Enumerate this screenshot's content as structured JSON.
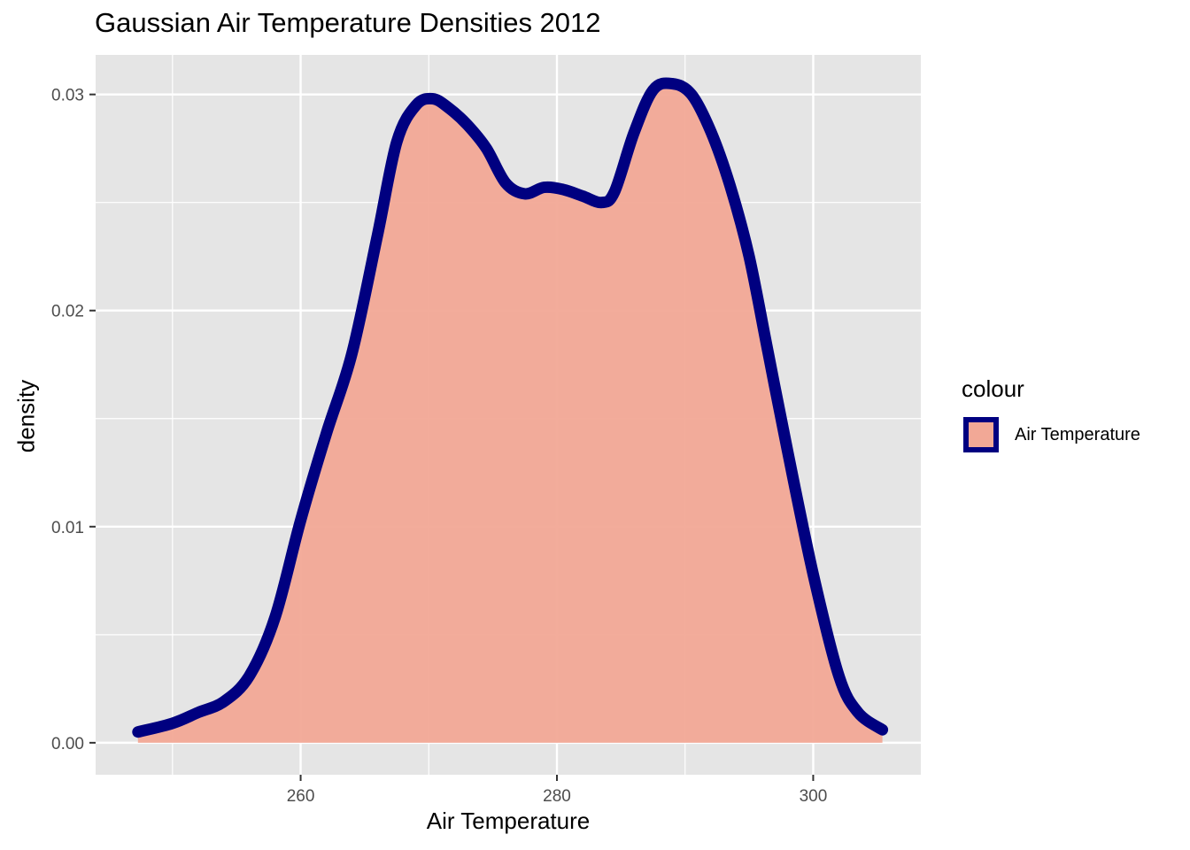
{
  "chart_data": {
    "type": "area",
    "title": "Gaussian Air Temperature Densities 2012",
    "xlabel": "Air Temperature",
    "ylabel": "density",
    "xlim": [
      244,
      308.4
    ],
    "ylim": [
      -0.00148,
      0.03183
    ],
    "x_ticks": [
      260,
      280,
      300
    ],
    "y_ticks": [
      0.0,
      0.01,
      0.02,
      0.03
    ],
    "x_tick_labels": [
      "260",
      "280",
      "300"
    ],
    "y_tick_labels": [
      "0.00",
      "0.01",
      "0.02",
      "0.03"
    ],
    "grid": true,
    "legend": {
      "title": "colour",
      "placement": "right",
      "entries": [
        "Air Temperature"
      ]
    },
    "colors": {
      "panel": "#e5e5e5",
      "grid": "#ffffff",
      "line": "#000080",
      "fill": "#f2a896"
    },
    "series": [
      {
        "name": "Air Temperature",
        "x": [
          247.3,
          250,
          252,
          254,
          256,
          258,
          260,
          262,
          264,
          266,
          267.5,
          269,
          270.3,
          271.5,
          273,
          274.5,
          276,
          277.5,
          279,
          280.5,
          282,
          283.5,
          284.5,
          286,
          287.5,
          289,
          290.5,
          292,
          293.5,
          295,
          296.5,
          298,
          300,
          302,
          303.5,
          305.4
        ],
        "y": [
          0.0005,
          0.0009,
          0.0014,
          0.0019,
          0.0031,
          0.0058,
          0.0103,
          0.0143,
          0.018,
          0.0235,
          0.0278,
          0.0295,
          0.0298,
          0.0294,
          0.0286,
          0.0275,
          0.0259,
          0.0254,
          0.0257,
          0.0256,
          0.0253,
          0.025,
          0.0255,
          0.0282,
          0.0302,
          0.0305,
          0.03,
          0.0283,
          0.0258,
          0.0225,
          0.018,
          0.0135,
          0.0078,
          0.0031,
          0.0014,
          0.0006
        ]
      }
    ]
  }
}
